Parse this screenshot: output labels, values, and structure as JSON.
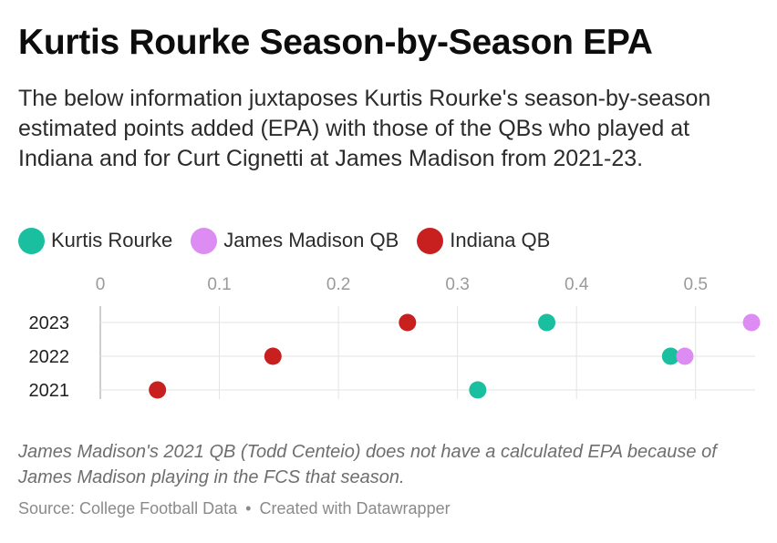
{
  "title": "Kurtis Rourke Season-by-Season EPA",
  "subtitle": "The below information juxtaposes Kurtis Rourke's season-by-season estimated points added (EPA) with those of the QBs who played at Indiana and for Curt Cignetti at James Madison from 2021-23.",
  "legend": [
    {
      "label": "Kurtis Rourke",
      "color": "#19bf9e"
    },
    {
      "label": "James Madison QB",
      "color": "#dc8cf2"
    },
    {
      "label": "Indiana QB",
      "color": "#c8201f"
    }
  ],
  "chart_data": {
    "type": "scatter",
    "categories": [
      "2023",
      "2022",
      "2021"
    ],
    "x_ticks": [
      "0",
      "0.1",
      "0.2",
      "0.3",
      "0.4",
      "0.5"
    ],
    "xlim": [
      0,
      0.55
    ],
    "grid": true,
    "legend_position": "top",
    "series": [
      {
        "name": "Kurtis Rourke",
        "color": "#19bf9e",
        "values": [
          0.375,
          0.479,
          0.317
        ]
      },
      {
        "name": "James Madison QB",
        "color": "#dc8cf2",
        "values": [
          0.547,
          0.491,
          null
        ]
      },
      {
        "name": "Indiana QB",
        "color": "#c8201f",
        "values": [
          0.258,
          0.145,
          0.048
        ]
      }
    ]
  },
  "note": "James Madison's 2021 QB (Todd Centeio) does not have a calculated EPA because of James Madison playing in the FCS that season.",
  "source": {
    "text": "Source: College Football Data",
    "separator": "•",
    "credit": "Created with Datawrapper"
  }
}
